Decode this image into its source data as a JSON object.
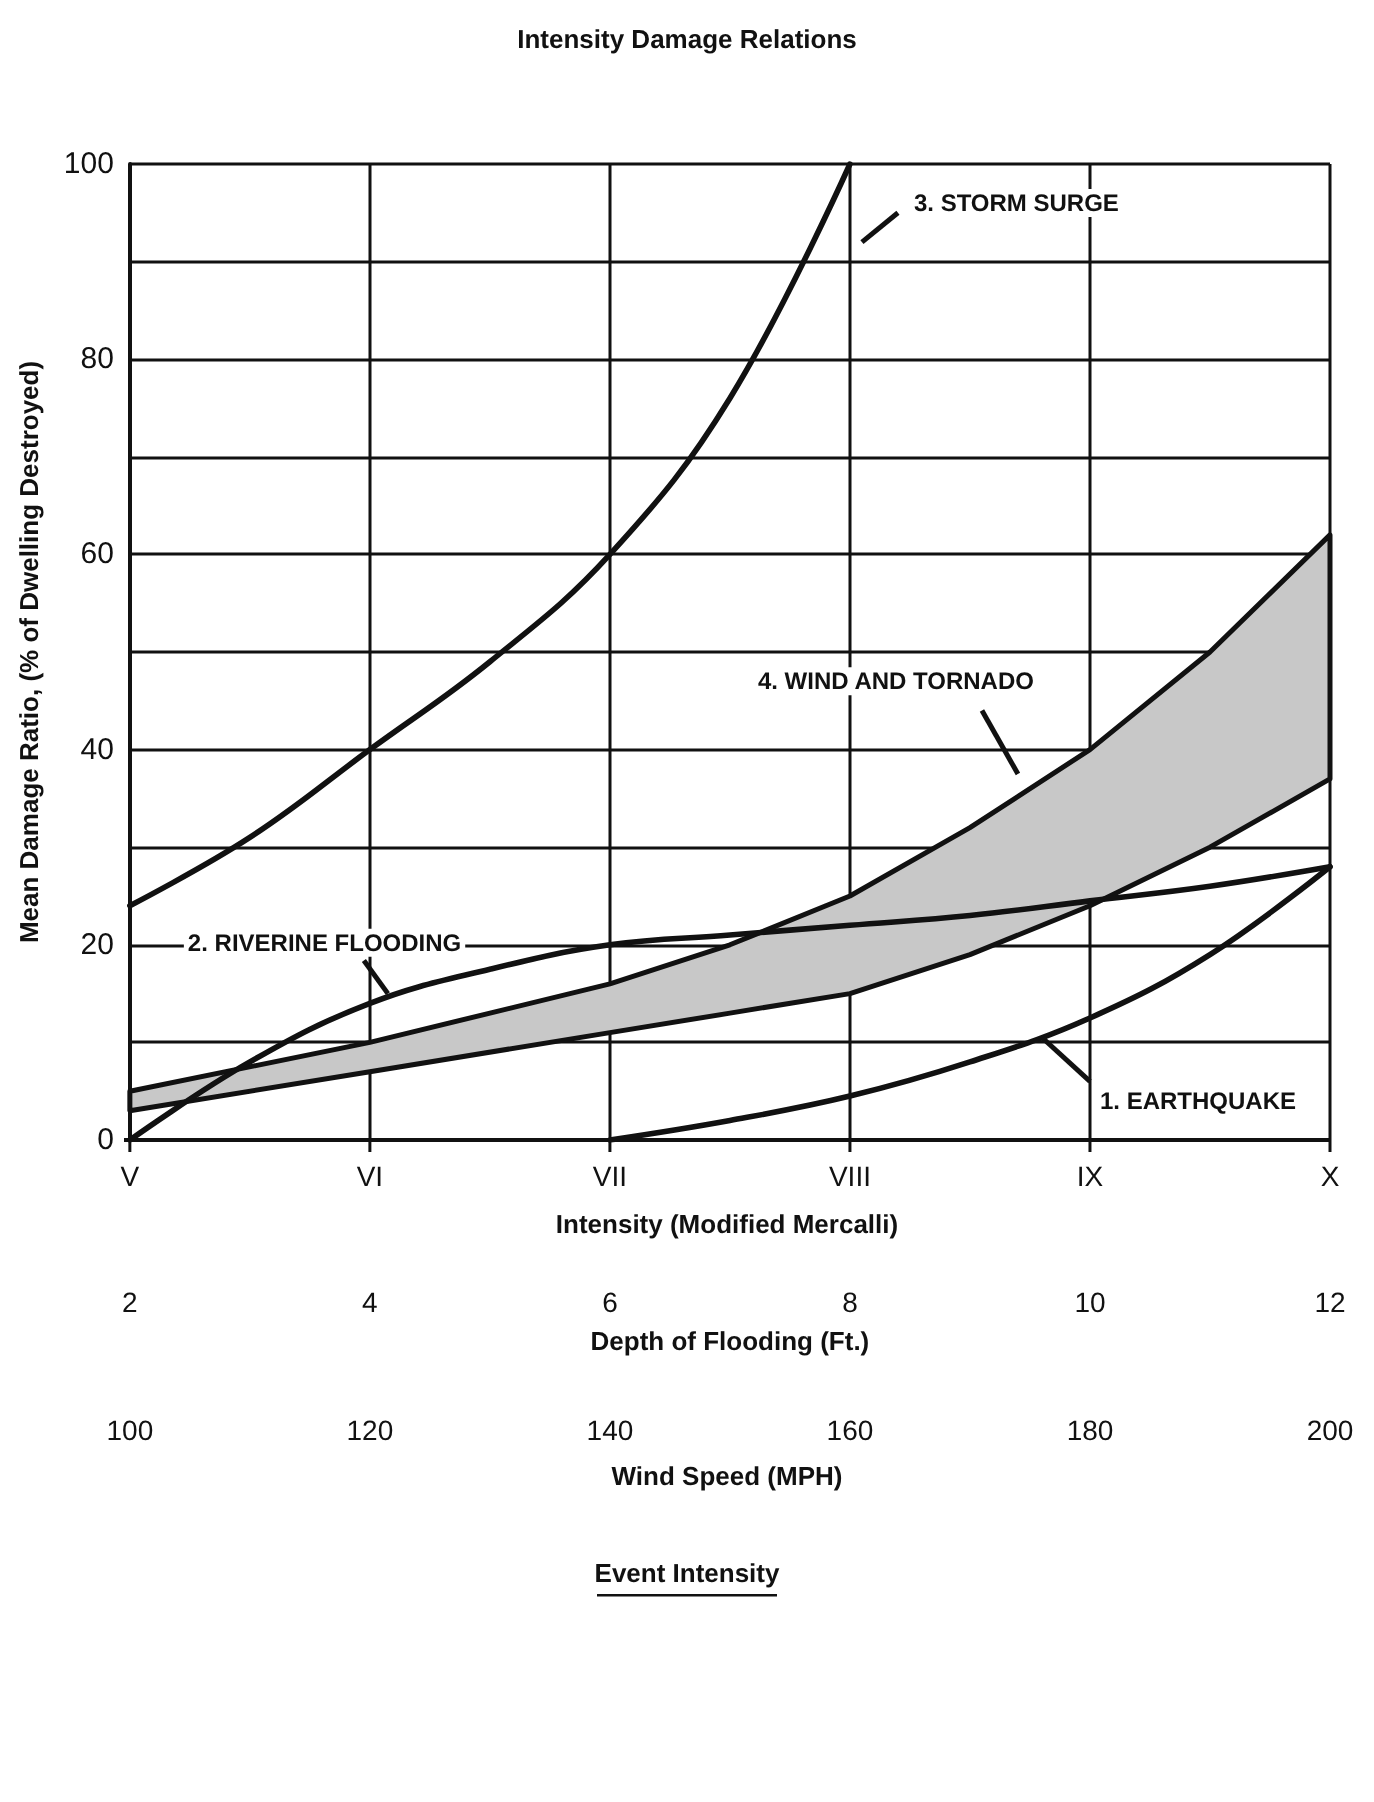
{
  "chart_data": {
    "type": "line",
    "title": "Intensity Damage Relations",
    "xlabel": "Depth of Flooding (Ft.)",
    "ylabel": "Mean Damage Ratio, (% of Dwelling Destroyed)",
    "annotations": [
      "V",
      "VI",
      "VII",
      "VIII",
      "IX",
      "X",
      "Intensity (Modified Mercalli)",
      "100",
      "120",
      "140",
      "160",
      "180",
      "200",
      "Wind Speed (MPH)",
      "Event Intensity"
    ],
    "xlim": [
      2,
      12
    ],
    "xticks": [
      2,
      4,
      6,
      8,
      10,
      12
    ],
    "ylim": [
      0,
      100
    ],
    "yticks": [
      0,
      {
        "value": 10,
        "label": null
      },
      20,
      {
        "value": 30,
        "label": null
      },
      40,
      {
        "value": 50,
        "label": null
      },
      60,
      {
        "value": 70,
        "label": null
      },
      80,
      {
        "value": 90,
        "label": null
      },
      100
    ],
    "grid": true,
    "marker": "none",
    "line_style": "solid",
    "series": [
      {
        "name": "3. STORM SURGE",
        "color": "#111111",
        "x": [
          2,
          3,
          4,
          5,
          6,
          7,
          8
        ],
        "values": [
          24,
          31,
          40,
          49,
          60,
          76,
          100
        ]
      },
      {
        "name": "2. RIVERINE FLOODING",
        "color": "#111111",
        "x": [
          2,
          3,
          4,
          5,
          6,
          7,
          8,
          9,
          10,
          11,
          12
        ],
        "values": [
          0,
          8,
          14,
          17.5,
          20,
          21,
          22,
          23,
          24.5,
          26,
          28
        ]
      },
      {
        "name": "4. WIND AND TORNADO",
        "type": "area",
        "color": "#111111",
        "x": [
          2,
          4,
          6,
          7,
          8,
          9,
          10,
          11,
          12
        ],
        "values": [
          null,
          null,
          null,
          null,
          null,
          null,
          null,
          null,
          null
        ],
        "lower": [
          3,
          7,
          11,
          13,
          15,
          19,
          24,
          30,
          37
        ],
        "upper": [
          5,
          10,
          16,
          20,
          25,
          32,
          40,
          50,
          62
        ]
      },
      {
        "name": "1. EARTHQUAKE",
        "color": "#111111",
        "x": [
          6,
          7,
          8,
          9,
          10,
          11,
          12
        ],
        "values": [
          0,
          2,
          4.5,
          8,
          12.5,
          19,
          28
        ]
      }
    ]
  }
}
